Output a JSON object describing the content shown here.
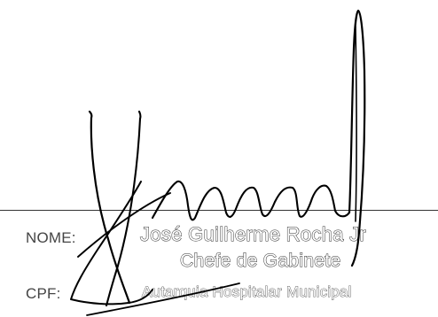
{
  "form": {
    "name_label": "NOME:",
    "cpf_label": "CPF:"
  },
  "stamp": {
    "name": "José Guilherme Rocha Jr",
    "role": "Chefe de Gabinete",
    "organization": "Autarquia Hospitalar Municipal"
  },
  "colors": {
    "ink": "#000000",
    "line": "#333333",
    "label": "#444444"
  }
}
